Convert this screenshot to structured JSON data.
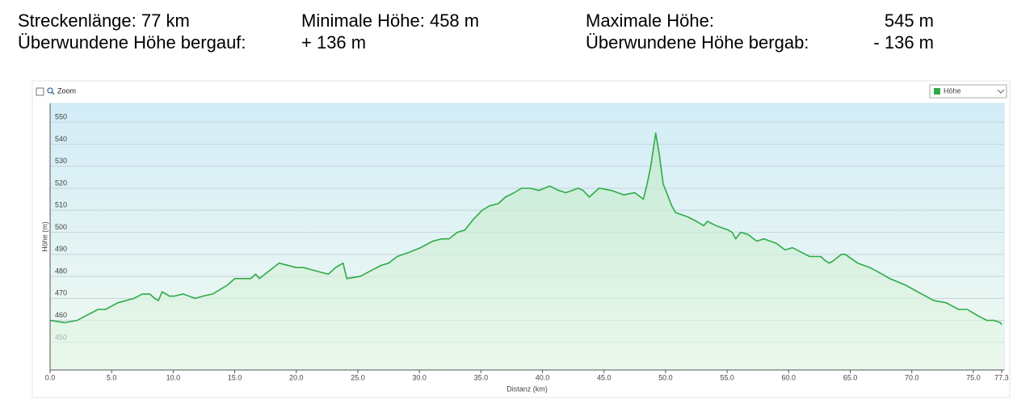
{
  "stats": {
    "row1": [
      "Streckenlänge: 77 km",
      "Minimale Höhe: 458 m",
      "Maximale Höhe:",
      "545 m"
    ],
    "row2": [
      "Überwundene Höhe bergauf:",
      "+ 136 m",
      "Überwundene Höhe bergab:",
      "- 136 m"
    ]
  },
  "toolbar": {
    "zoom": "Zoom"
  },
  "chart_data": {
    "type": "area",
    "xlabel": "Distanz (km)",
    "ylabel": "Höhe (m)",
    "x": [
      0.0,
      1.2,
      2.2,
      3.9,
      4.5,
      5.5,
      6.8,
      7.5,
      8.1,
      8.5,
      8.8,
      9.1,
      9.7,
      10.1,
      10.8,
      11.8,
      12.4,
      13.2,
      14.4,
      15.0,
      16.3,
      16.7,
      17.0,
      18.6,
      20.0,
      20.6,
      21.9,
      22.6,
      23.2,
      23.8,
      24.1,
      25.2,
      26.2,
      26.9,
      27.5,
      28.2,
      29.2,
      30.1,
      31.1,
      31.8,
      32.4,
      33.1,
      33.7,
      34.4,
      35.1,
      35.7,
      36.4,
      37.0,
      37.7,
      38.3,
      39.0,
      39.7,
      40.6,
      41.3,
      41.9,
      42.9,
      43.3,
      43.8,
      44.6,
      45.6,
      46.6,
      47.5,
      48.2,
      48.5,
      48.8,
      49.2,
      49.5,
      49.8,
      50.5,
      50.8,
      51.8,
      52.5,
      53.1,
      53.4,
      54.1,
      55.1,
      55.4,
      55.7,
      56.1,
      56.7,
      57.4,
      58.0,
      59.0,
      59.7,
      60.3,
      61.0,
      61.7,
      62.6,
      63.0,
      63.3,
      63.6,
      64.3,
      64.6,
      65.6,
      66.6,
      67.6,
      68.2,
      69.5,
      70.8,
      71.8,
      72.8,
      73.8,
      74.5,
      75.4,
      76.1,
      76.7,
      77.2,
      77.3
    ],
    "series": [
      {
        "name": "Höhe",
        "color": "#2eab47",
        "values": [
          460,
          459,
          460,
          465,
          465,
          468,
          470,
          472,
          472,
          470,
          469,
          473,
          471,
          471,
          472,
          470,
          471,
          472,
          476,
          479,
          479,
          481,
          479,
          486,
          484,
          484,
          482,
          481,
          484,
          486,
          479,
          480,
          483,
          485,
          486,
          489,
          491,
          493,
          496,
          497,
          497,
          500,
          501,
          506,
          510,
          512,
          513,
          516,
          518,
          520,
          520,
          519,
          521,
          519,
          518,
          520,
          519,
          516,
          520,
          519,
          517,
          518,
          515,
          522,
          530,
          545,
          535,
          522,
          512,
          509,
          507,
          505,
          503,
          505,
          503,
          501,
          500,
          497,
          500,
          499,
          496,
          497,
          495,
          492,
          493,
          491,
          489,
          489,
          487,
          486,
          487,
          490,
          490,
          486,
          484,
          481,
          479,
          476,
          472,
          469,
          468,
          465,
          465,
          462,
          460,
          460,
          459,
          458
        ]
      }
    ],
    "xlim": [
      0,
      77.5
    ],
    "ylim": [
      437.5,
      558.5
    ],
    "xticks": [
      {
        "value": 0,
        "label": "0.0"
      },
      {
        "value": 5,
        "label": "5.0"
      },
      {
        "value": 10,
        "label": "10.0"
      },
      {
        "value": 15,
        "label": "15.0"
      },
      {
        "value": 20,
        "label": "20.0"
      },
      {
        "value": 25,
        "label": "25.0"
      },
      {
        "value": 30,
        "label": "30.0"
      },
      {
        "value": 35,
        "label": "35.0"
      },
      {
        "value": 40,
        "label": "40.0"
      },
      {
        "value": 45,
        "label": "45.0"
      },
      {
        "value": 50,
        "label": "50.0"
      },
      {
        "value": 55,
        "label": "55.0"
      },
      {
        "value": 60,
        "label": "60.0"
      },
      {
        "value": 65,
        "label": "65.0"
      },
      {
        "value": 70,
        "label": "70.0"
      },
      {
        "value": 75,
        "label": "75.0"
      },
      77.3
    ],
    "yticks": [
      450,
      460,
      470,
      480,
      490,
      500,
      510,
      520,
      530,
      540,
      550
    ],
    "grid": true
  }
}
